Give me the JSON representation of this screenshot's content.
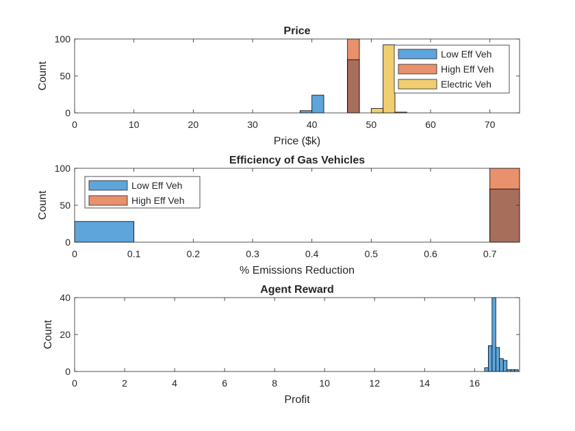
{
  "colors": {
    "low": "#5DA5DA",
    "high": "#E8916C",
    "electric": "#F0CE6F",
    "overlap_low_high": "#A86E5C"
  },
  "chart_data": [
    {
      "type": "histogram",
      "title": "Price",
      "xlabel": "Price ($k)",
      "ylabel": "Count",
      "xlim": [
        0,
        75
      ],
      "ylim": [
        0,
        100
      ],
      "xticks": [
        "0",
        "10",
        "20",
        "30",
        "40",
        "50",
        "60",
        "70"
      ],
      "xtick_values": [
        0,
        10,
        20,
        30,
        40,
        50,
        60,
        70
      ],
      "yticks": [
        "0",
        "50",
        "100"
      ],
      "ytick_values": [
        0,
        50,
        100
      ],
      "legend_position": "top-right",
      "series": [
        {
          "name": "Low Eff Veh",
          "color_key": "low",
          "bins": [
            {
              "x0": 38,
              "x1": 40,
              "y": 3
            },
            {
              "x0": 40,
              "x1": 42,
              "y": 24
            },
            {
              "x0": 46,
              "x1": 48,
              "y": 72
            }
          ]
        },
        {
          "name": "High Eff Veh",
          "color_key": "high",
          "bins": [
            {
              "x0": 46,
              "x1": 48,
              "y": 100
            }
          ]
        },
        {
          "name": "Electric Veh",
          "color_key": "electric",
          "bins": [
            {
              "x0": 50,
              "x1": 52,
              "y": 6
            },
            {
              "x0": 52,
              "x1": 54,
              "y": 92
            },
            {
              "x0": 54,
              "x1": 56,
              "y": 1
            }
          ]
        }
      ]
    },
    {
      "type": "histogram",
      "title": "Efficiency of Gas Vehicles",
      "xlabel": "% Emissions Reduction",
      "ylabel": "Count",
      "xlim": [
        0,
        0.75
      ],
      "ylim": [
        0,
        100
      ],
      "xticks": [
        "0",
        "0.1",
        "0.2",
        "0.3",
        "0.4",
        "0.5",
        "0.6",
        "0.7"
      ],
      "xtick_values": [
        0,
        0.1,
        0.2,
        0.3,
        0.4,
        0.5,
        0.6,
        0.7
      ],
      "yticks": [
        "0",
        "50",
        "100"
      ],
      "ytick_values": [
        0,
        50,
        100
      ],
      "legend_position": "top-left",
      "series": [
        {
          "name": "Low Eff Veh",
          "color_key": "low",
          "bins": [
            {
              "x0": 0,
              "x1": 0.1,
              "y": 28
            },
            {
              "x0": 0.7,
              "x1": 0.75,
              "y": 72
            }
          ]
        },
        {
          "name": "High Eff Veh",
          "color_key": "high",
          "bins": [
            {
              "x0": 0.7,
              "x1": 0.75,
              "y": 100
            }
          ]
        }
      ]
    },
    {
      "type": "histogram",
      "title": "Agent Reward",
      "xlabel": "Profit",
      "ylabel": "Count",
      "xlim": [
        0,
        17.8
      ],
      "ylim": [
        0,
        40
      ],
      "xticks": [
        "0",
        "2",
        "4",
        "6",
        "8",
        "10",
        "12",
        "14",
        "16"
      ],
      "xtick_values": [
        0,
        2,
        4,
        6,
        8,
        10,
        12,
        14,
        16
      ],
      "yticks": [
        "0",
        "20",
        "40"
      ],
      "ytick_values": [
        0,
        20,
        40
      ],
      "legend_position": "none",
      "series": [
        {
          "name": "",
          "color_key": "low",
          "bins": [
            {
              "x0": 16.4,
              "x1": 16.55,
              "y": 2
            },
            {
              "x0": 16.55,
              "x1": 16.7,
              "y": 14
            },
            {
              "x0": 16.7,
              "x1": 16.85,
              "y": 40
            },
            {
              "x0": 16.85,
              "x1": 17.0,
              "y": 13
            },
            {
              "x0": 17.0,
              "x1": 17.15,
              "y": 7
            },
            {
              "x0": 17.15,
              "x1": 17.3,
              "y": 6
            },
            {
              "x0": 17.3,
              "x1": 17.45,
              "y": 1
            },
            {
              "x0": 17.45,
              "x1": 17.6,
              "y": 1
            },
            {
              "x0": 17.6,
              "x1": 17.75,
              "y": 1
            }
          ]
        }
      ]
    }
  ]
}
